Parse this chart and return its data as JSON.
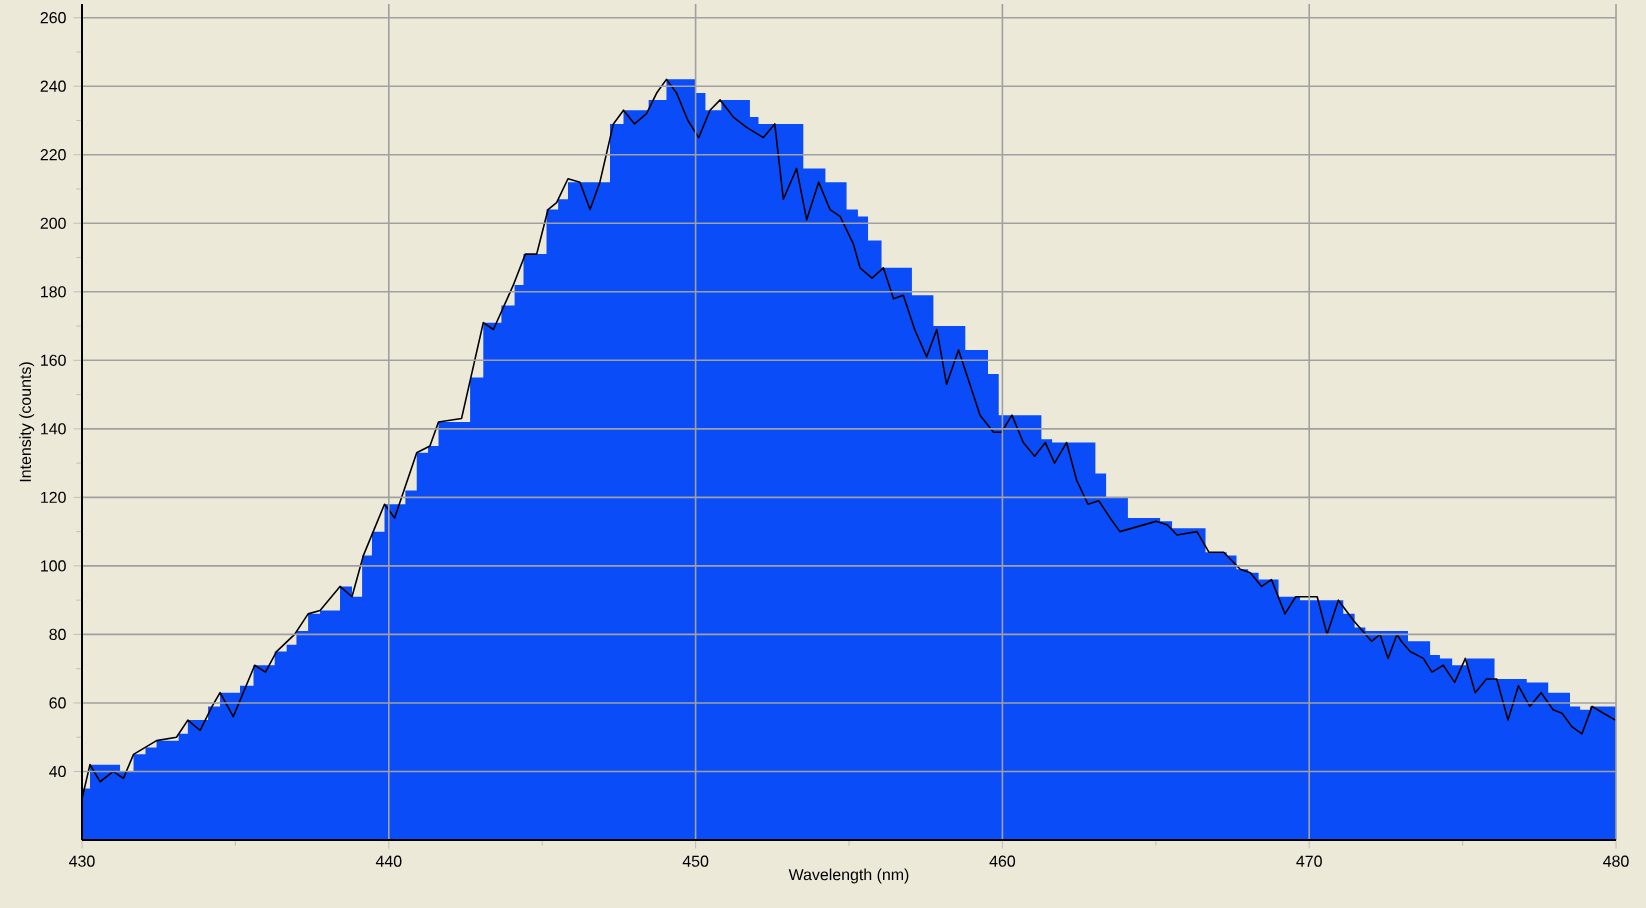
{
  "chart_data": {
    "type": "line",
    "xlabel": "Wavelength (nm)",
    "ylabel": "Intensity (counts)",
    "xlim": [
      430,
      480
    ],
    "ylim": [
      20,
      264
    ],
    "xticks": [
      430,
      440,
      450,
      460,
      470,
      480
    ],
    "yticks": [
      40,
      60,
      80,
      100,
      120,
      140,
      160,
      180,
      200,
      220,
      240,
      260
    ],
    "grid": true,
    "series": [
      {
        "type": "area",
        "color": "#0a4cf8",
        "x": [
          430.0,
          430.26,
          431.24,
          431.68,
          432.07,
          432.43,
          433.15,
          433.45,
          434.11,
          434.5,
          435.15,
          435.59,
          436.28,
          436.67,
          436.99,
          437.37,
          437.76,
          438.41,
          438.8,
          439.13,
          439.45,
          439.86,
          440.54,
          440.91,
          441.28,
          441.62,
          442.65,
          443.08,
          443.67,
          444.1,
          444.39,
          445.14,
          445.52,
          445.84,
          447.21,
          447.65,
          448.47,
          449.05,
          449.99,
          450.32,
          450.84,
          451.77,
          452.05,
          453.51,
          454.23,
          454.92,
          455.29,
          455.62,
          456.06,
          457.05,
          457.75,
          458.79,
          459.53,
          459.88,
          461.27,
          461.62,
          463.03,
          463.38,
          464.09,
          465.14,
          465.53,
          466.62,
          467.31,
          467.63,
          468.01,
          468.35,
          469.0,
          469.7,
          471.11,
          471.48,
          471.83,
          473.22,
          473.94,
          474.26,
          474.66,
          475.13,
          476.04,
          477.09,
          477.79,
          478.5,
          478.83,
          479.15,
          480.0
        ],
        "values": [
          35,
          42,
          40,
          45,
          47,
          49,
          51,
          55,
          59,
          63,
          65,
          71,
          75,
          77,
          81,
          86,
          87,
          94,
          91,
          103,
          110,
          118,
          122,
          133,
          135,
          142,
          155,
          171,
          176,
          182,
          191,
          204,
          207,
          212,
          229,
          233,
          236,
          242,
          238,
          233,
          236,
          231,
          229,
          216,
          212,
          204,
          202,
          195,
          187,
          179,
          170,
          163,
          156,
          144,
          137,
          136,
          127,
          120,
          114,
          113,
          111,
          104,
          103,
          99,
          98,
          96,
          91,
          90,
          86,
          82,
          81,
          78,
          74,
          73,
          71,
          73,
          67,
          66,
          63,
          59,
          58,
          59,
          59
        ]
      },
      {
        "color": "#000000",
        "x": [
          430.0,
          430.26,
          430.59,
          431.02,
          431.35,
          431.68,
          432.43,
          433.08,
          433.45,
          433.85,
          434.24,
          434.5,
          434.93,
          435.63,
          435.98,
          436.34,
          436.93,
          437.37,
          437.76,
          438.41,
          438.8,
          439.17,
          439.86,
          440.19,
          440.91,
          441.34,
          441.62,
          442.37,
          443.08,
          443.41,
          444.06,
          444.45,
          444.82,
          445.19,
          445.47,
          445.84,
          446.23,
          446.56,
          446.88,
          447.32,
          447.65,
          448.01,
          448.4,
          448.73,
          449.05,
          449.38,
          449.75,
          450.1,
          450.47,
          450.8,
          451.23,
          451.66,
          452.21,
          452.58,
          452.86,
          453.29,
          453.62,
          454.01,
          454.38,
          454.71,
          455.14,
          455.36,
          455.75,
          456.12,
          456.45,
          456.77,
          457.14,
          457.53,
          457.86,
          458.18,
          458.57,
          458.94,
          459.27,
          459.71,
          459.97,
          460.31,
          460.68,
          461.05,
          461.4,
          461.7,
          462.09,
          462.42,
          462.79,
          463.14,
          463.51,
          463.83,
          465.0,
          465.37,
          465.69,
          466.34,
          466.73,
          467.21,
          467.75,
          468.08,
          468.45,
          468.77,
          469.21,
          469.56,
          470.26,
          470.58,
          470.95,
          471.45,
          472.03,
          472.31,
          472.57,
          472.86,
          473.0,
          473.29,
          473.72,
          474.0,
          474.37,
          474.74,
          475.09,
          475.41,
          475.78,
          476.11,
          476.48,
          476.82,
          477.19,
          477.56,
          477.95,
          478.24,
          478.57,
          478.89,
          479.22,
          479.59,
          479.98
        ],
        "values": [
          32,
          42,
          37,
          40,
          38,
          45,
          49,
          50,
          55,
          52,
          59,
          63,
          56,
          71,
          69,
          75,
          80,
          86,
          87,
          94,
          91,
          103,
          118,
          114,
          133,
          135,
          142,
          143,
          171,
          169,
          182,
          191,
          191,
          204,
          206,
          213,
          212,
          204,
          212,
          229,
          233,
          229,
          232,
          238,
          242,
          238,
          230,
          225,
          233,
          236,
          231,
          228,
          225,
          229,
          207,
          216,
          201,
          212,
          204,
          202,
          194,
          187,
          184,
          187,
          178,
          179,
          169,
          161,
          169,
          153,
          163,
          153,
          144,
          139,
          139,
          144,
          136,
          132,
          136,
          130,
          136,
          125,
          118,
          119,
          114,
          110,
          113,
          112,
          109,
          110,
          104,
          104,
          99,
          98,
          94,
          96,
          86,
          91,
          91,
          80,
          90,
          84,
          78,
          80,
          73,
          80,
          78,
          75,
          73,
          69,
          71,
          66,
          73,
          63,
          67,
          67,
          55,
          65,
          59,
          63,
          58,
          57,
          53,
          51,
          59,
          57,
          55
        ]
      }
    ]
  }
}
